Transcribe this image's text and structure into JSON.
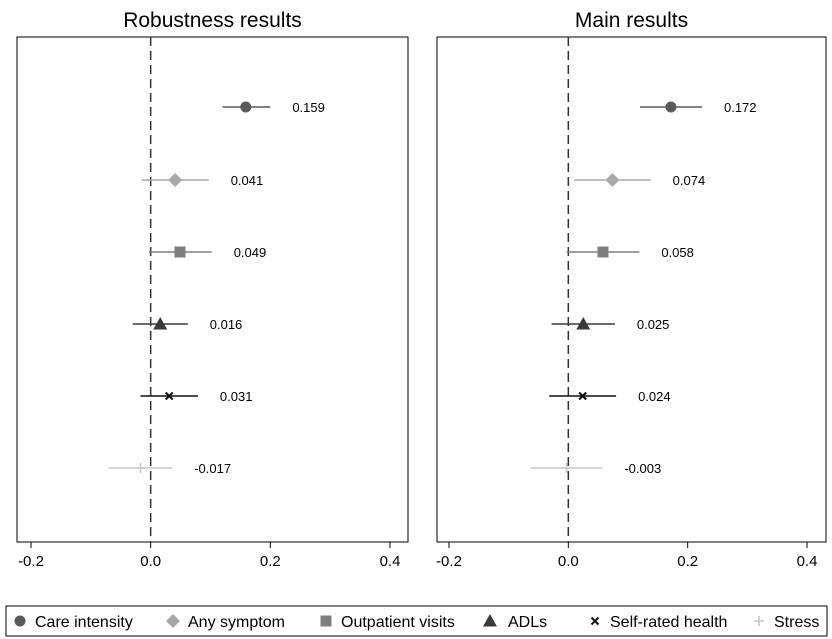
{
  "chart_data": {
    "type": "forest",
    "panels": [
      {
        "title": "Robustness results",
        "xlim": [
          -0.2,
          0.4
        ],
        "xticks": [
          "-0.2",
          "0.0",
          "0.2",
          "0.4"
        ],
        "points": [
          {
            "series": "Care intensity",
            "value": 0.159,
            "label": "0.159",
            "ci": [
              0.12,
              0.2
            ]
          },
          {
            "series": "Any symptom",
            "value": 0.041,
            "label": "0.041",
            "ci": [
              -0.015,
              0.097
            ]
          },
          {
            "series": "Outpatient visits",
            "value": 0.049,
            "label": "0.049",
            "ci": [
              -0.003,
              0.102
            ]
          },
          {
            "series": "ADLs",
            "value": 0.016,
            "label": "0.016",
            "ci": [
              -0.03,
              0.062
            ]
          },
          {
            "series": "Self-rated health",
            "value": 0.031,
            "label": "0.031",
            "ci": [
              -0.017,
              0.079
            ]
          },
          {
            "series": "Stress",
            "value": -0.017,
            "label": "-0.017",
            "ci": [
              -0.07,
              0.036
            ]
          }
        ]
      },
      {
        "title": "Main results",
        "xlim": [
          -0.2,
          0.4
        ],
        "xticks": [
          "-0.2",
          "0.0",
          "0.2",
          "0.4"
        ],
        "points": [
          {
            "series": "Care intensity",
            "value": 0.172,
            "label": "0.172",
            "ci": [
              0.12,
              0.224
            ]
          },
          {
            "series": "Any symptom",
            "value": 0.074,
            "label": "0.074",
            "ci": [
              0.01,
              0.138
            ]
          },
          {
            "series": "Outpatient visits",
            "value": 0.058,
            "label": "0.058",
            "ci": [
              -0.003,
              0.119
            ]
          },
          {
            "series": "ADLs",
            "value": 0.025,
            "label": "0.025",
            "ci": [
              -0.028,
              0.078
            ]
          },
          {
            "series": "Self-rated health",
            "value": 0.024,
            "label": "0.024",
            "ci": [
              -0.032,
              0.08
            ]
          },
          {
            "series": "Stress",
            "value": -0.003,
            "label": "-0.003",
            "ci": [
              -0.063,
              0.057
            ]
          }
        ]
      }
    ],
    "reference_line": 0,
    "series": [
      {
        "name": "Care intensity",
        "marker": "circle",
        "color": "#5a5a5a"
      },
      {
        "name": "Any symptom",
        "marker": "diamond",
        "color": "#a8a8a8"
      },
      {
        "name": "Outpatient visits",
        "marker": "square",
        "color": "#7f7f7f"
      },
      {
        "name": "ADLs",
        "marker": "triangle",
        "color": "#3a3a3a"
      },
      {
        "name": "Self-rated health",
        "marker": "x",
        "color": "#111111"
      },
      {
        "name": "Stress",
        "marker": "plus",
        "color": "#c8c8c8"
      }
    ],
    "legend_position": "bottom"
  }
}
